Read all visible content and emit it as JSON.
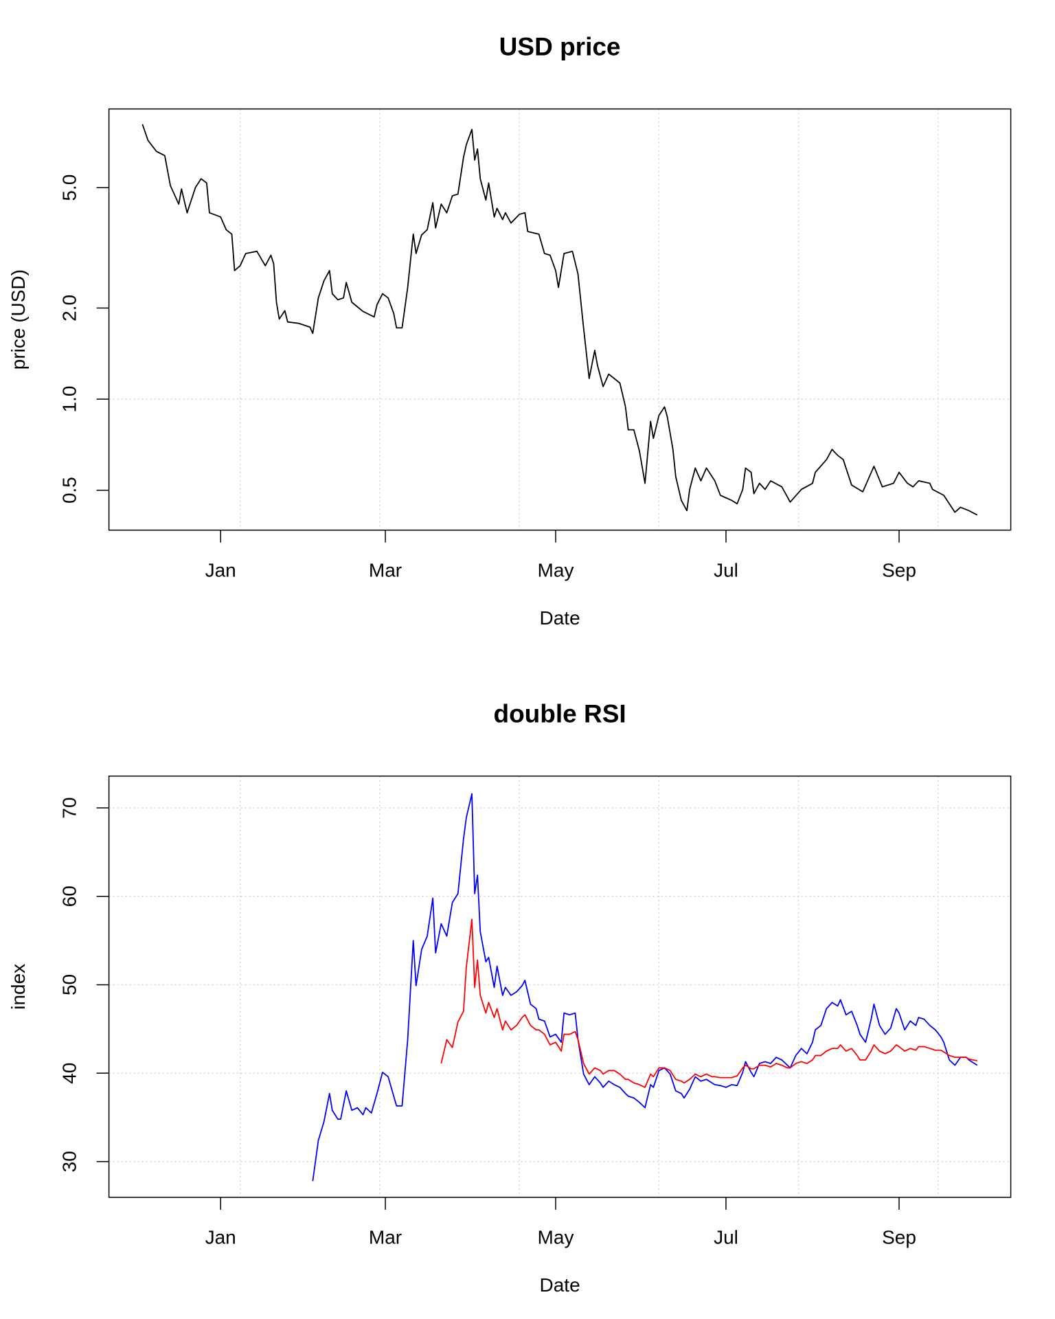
{
  "chart_data": [
    {
      "type": "line",
      "title": "USD price",
      "x_label": "Date",
      "y_label": "price (USD)",
      "log_y": true,
      "color": "#000000",
      "x": [
        -28,
        -26,
        -23,
        -20,
        -18,
        -15,
        -14,
        -12,
        -9,
        -7,
        -5,
        -4,
        0,
        2,
        4,
        5,
        7,
        9,
        13,
        16,
        18,
        19,
        20,
        21,
        23,
        24,
        28,
        32,
        33,
        35,
        37,
        39,
        40,
        42,
        44,
        45,
        47,
        51,
        55,
        56,
        58,
        60,
        62,
        63,
        65,
        67,
        69,
        70,
        72,
        74,
        76,
        77,
        79,
        81,
        83,
        85,
        87,
        88,
        90,
        91,
        92,
        93,
        95,
        96,
        98,
        99,
        101,
        102,
        104,
        107,
        109,
        110,
        114,
        116,
        118,
        120,
        121,
        123,
        126,
        128,
        130,
        132,
        134,
        135,
        137,
        139,
        143,
        145,
        146,
        148,
        150,
        152,
        154,
        155,
        157,
        159,
        160,
        162,
        163,
        165,
        167,
        168,
        170,
        172,
        174,
        177,
        179,
        183,
        185,
        187,
        188,
        190,
        191,
        193,
        195,
        197,
        201,
        204,
        208,
        212,
        213,
        217,
        219,
        221,
        223,
        226,
        230,
        234,
        237,
        241,
        243,
        246,
        248,
        250,
        254,
        255,
        259,
        261,
        263,
        265,
        268,
        271
      ],
      "values": [
        8.1,
        7.16,
        6.59,
        6.38,
        5.08,
        4.41,
        4.95,
        4.13,
        5.01,
        5.35,
        5.18,
        4.13,
        4.0,
        3.63,
        3.51,
        2.66,
        2.76,
        3.03,
        3.08,
        2.76,
        2.99,
        2.8,
        2.09,
        1.84,
        1.96,
        1.8,
        1.78,
        1.73,
        1.65,
        2.16,
        2.46,
        2.66,
        2.23,
        2.13,
        2.16,
        2.43,
        2.09,
        1.95,
        1.87,
        2.05,
        2.23,
        2.16,
        1.92,
        1.72,
        1.72,
        2.34,
        3.51,
        3.03,
        3.49,
        3.63,
        4.46,
        3.68,
        4.41,
        4.13,
        4.7,
        4.76,
        6.3,
        6.93,
        7.79,
        6.17,
        6.71,
        5.35,
        4.55,
        5.18,
        4.0,
        4.27,
        3.92,
        4.13,
        3.82,
        4.08,
        4.13,
        3.58,
        3.51,
        3.03,
        2.99,
        2.66,
        2.34,
        3.03,
        3.08,
        2.59,
        1.72,
        1.17,
        1.45,
        1.29,
        1.1,
        1.21,
        1.13,
        0.943,
        0.792,
        0.792,
        0.674,
        0.527,
        0.845,
        0.742,
        0.884,
        0.943,
        0.873,
        0.682,
        0.555,
        0.463,
        0.428,
        0.503,
        0.592,
        0.537,
        0.592,
        0.537,
        0.481,
        0.463,
        0.451,
        0.503,
        0.592,
        0.573,
        0.487,
        0.527,
        0.503,
        0.537,
        0.513,
        0.457,
        0.503,
        0.527,
        0.573,
        0.631,
        0.682,
        0.652,
        0.631,
        0.52,
        0.494,
        0.6,
        0.513,
        0.527,
        0.573,
        0.527,
        0.513,
        0.537,
        0.527,
        0.503,
        0.481,
        0.451,
        0.423,
        0.439,
        0.428,
        0.414
      ],
      "xlim": [
        -40,
        283
      ],
      "ylim": [
        0.369,
        9.1
      ],
      "xticks": [
        {
          "value": 0,
          "label": "Jan"
        },
        {
          "value": 59,
          "label": "Mar"
        },
        {
          "value": 120,
          "label": "May"
        },
        {
          "value": 181,
          "label": "Jul"
        },
        {
          "value": 243,
          "label": "Sep"
        }
      ],
      "yticks": [
        {
          "value": 0.5,
          "label": "0.5"
        },
        {
          "value": 1,
          "label": "1.0"
        },
        {
          "value": 2,
          "label": "2.0"
        },
        {
          "value": 5,
          "label": "5.0"
        }
      ],
      "xgrid": [
        7,
        57,
        107,
        157,
        207,
        257
      ],
      "ygrid": [
        1
      ]
    },
    {
      "type": "line",
      "title": "double RSI",
      "x_label": "Date",
      "y_label": "index",
      "log_y": false,
      "x": [
        33,
        35,
        37,
        39,
        40,
        42,
        43,
        45,
        47,
        49,
        51,
        52,
        54,
        56,
        58,
        60,
        62,
        63,
        65,
        67,
        69,
        70,
        72,
        74,
        76,
        77,
        79,
        81,
        83,
        85,
        87,
        88,
        90,
        91,
        92,
        93,
        95,
        96,
        98,
        99,
        101,
        102,
        104,
        106,
        108,
        109,
        111,
        113,
        114,
        116,
        118,
        120,
        122,
        123,
        125,
        127,
        128,
        130,
        132,
        134,
        136,
        137,
        139,
        141,
        143,
        145,
        146,
        148,
        150,
        152,
        154,
        155,
        157,
        159,
        161,
        163,
        165,
        166,
        168,
        170,
        172,
        174,
        176,
        177,
        179,
        181,
        183,
        185,
        187,
        188,
        190,
        191,
        193,
        195,
        197,
        199,
        201,
        203,
        204,
        206,
        208,
        210,
        212,
        213,
        215,
        217,
        219,
        221,
        222,
        224,
        226,
        228,
        229,
        231,
        233,
        234,
        236,
        238,
        240,
        242,
        243,
        245,
        247,
        249,
        250,
        252,
        254,
        256,
        258,
        259,
        261,
        263,
        265,
        267,
        268,
        271
      ],
      "series": [
        {
          "color": "#0000ff",
          "values": [
            27.8,
            32.4,
            34.5,
            37.7,
            35.8,
            34.8,
            34.8,
            38.0,
            35.8,
            36.1,
            35.3,
            36.1,
            35.5,
            37.7,
            40.1,
            39.6,
            37.4,
            36.3,
            36.3,
            43.8,
            55.0,
            49.9,
            54.0,
            55.5,
            59.8,
            53.6,
            56.9,
            55.5,
            59.3,
            60.3,
            66.5,
            68.9,
            71.6,
            60.3,
            62.4,
            56.0,
            52.6,
            53.1,
            49.7,
            52.1,
            48.8,
            49.7,
            48.8,
            49.2,
            49.9,
            50.5,
            47.8,
            47.3,
            46.1,
            45.9,
            44.1,
            44.4,
            43.5,
            46.8,
            46.6,
            46.8,
            43.8,
            39.9,
            38.7,
            39.6,
            38.9,
            38.4,
            39.1,
            38.7,
            38.4,
            37.7,
            37.4,
            37.2,
            36.7,
            36.1,
            38.7,
            38.4,
            40.3,
            40.6,
            39.9,
            38.0,
            37.7,
            37.2,
            38.2,
            39.6,
            39.1,
            39.3,
            38.9,
            38.7,
            38.6,
            38.4,
            38.7,
            38.6,
            40.1,
            41.3,
            40.1,
            39.6,
            41.1,
            41.3,
            41.1,
            41.8,
            41.5,
            40.9,
            40.6,
            42.0,
            42.8,
            42.2,
            43.5,
            44.9,
            45.4,
            47.3,
            48.0,
            47.6,
            48.3,
            46.6,
            47.0,
            45.4,
            44.4,
            43.5,
            46.1,
            47.8,
            45.4,
            44.4,
            45.1,
            47.3,
            46.8,
            44.9,
            45.9,
            45.4,
            46.3,
            46.1,
            45.4,
            44.9,
            44.1,
            43.5,
            41.5,
            40.9,
            41.8,
            41.8,
            41.5,
            40.9
          ]
        },
        {
          "color": "#ff0000",
          "values": [
            null,
            null,
            null,
            null,
            null,
            null,
            null,
            null,
            null,
            null,
            null,
            null,
            null,
            null,
            null,
            null,
            null,
            null,
            null,
            null,
            null,
            null,
            null,
            null,
            null,
            null,
            41.1,
            43.8,
            42.9,
            45.8,
            47.0,
            52.0,
            57.4,
            49.7,
            52.8,
            48.8,
            46.8,
            48.0,
            46.3,
            47.3,
            44.9,
            45.9,
            44.9,
            45.4,
            46.3,
            46.6,
            45.4,
            44.9,
            44.9,
            44.4,
            43.2,
            43.5,
            42.5,
            44.4,
            44.4,
            44.7,
            43.8,
            41.1,
            39.9,
            40.6,
            40.3,
            39.9,
            40.3,
            40.3,
            39.9,
            39.3,
            39.3,
            38.9,
            38.7,
            38.4,
            39.9,
            39.6,
            40.6,
            40.6,
            40.3,
            39.3,
            39.1,
            38.9,
            39.3,
            39.9,
            39.6,
            39.9,
            39.6,
            39.6,
            39.5,
            39.5,
            39.5,
            39.7,
            40.6,
            40.9,
            40.5,
            40.5,
            40.9,
            40.9,
            40.7,
            41.1,
            40.9,
            40.6,
            40.6,
            41.1,
            41.3,
            41.1,
            41.5,
            42.0,
            42.0,
            42.5,
            42.8,
            42.8,
            43.2,
            42.5,
            42.8,
            42.0,
            41.5,
            41.5,
            42.5,
            43.2,
            42.5,
            42.2,
            42.5,
            43.2,
            43.0,
            42.5,
            42.8,
            42.6,
            43.0,
            43.0,
            42.8,
            42.6,
            42.6,
            42.4,
            42.0,
            41.8,
            41.8,
            41.8,
            41.6,
            41.4
          ]
        }
      ],
      "xlim": [
        -40,
        283
      ],
      "ylim": [
        25.96,
        73.6
      ],
      "xticks": [
        {
          "value": 0,
          "label": "Jan"
        },
        {
          "value": 59,
          "label": "Mar"
        },
        {
          "value": 120,
          "label": "May"
        },
        {
          "value": 181,
          "label": "Jul"
        },
        {
          "value": 243,
          "label": "Sep"
        }
      ],
      "yticks": [
        30,
        40,
        50,
        60,
        70
      ],
      "xgrid": [
        7,
        57,
        107,
        157,
        207,
        257
      ],
      "ygrid": [
        30,
        40,
        50,
        60,
        70
      ]
    }
  ]
}
